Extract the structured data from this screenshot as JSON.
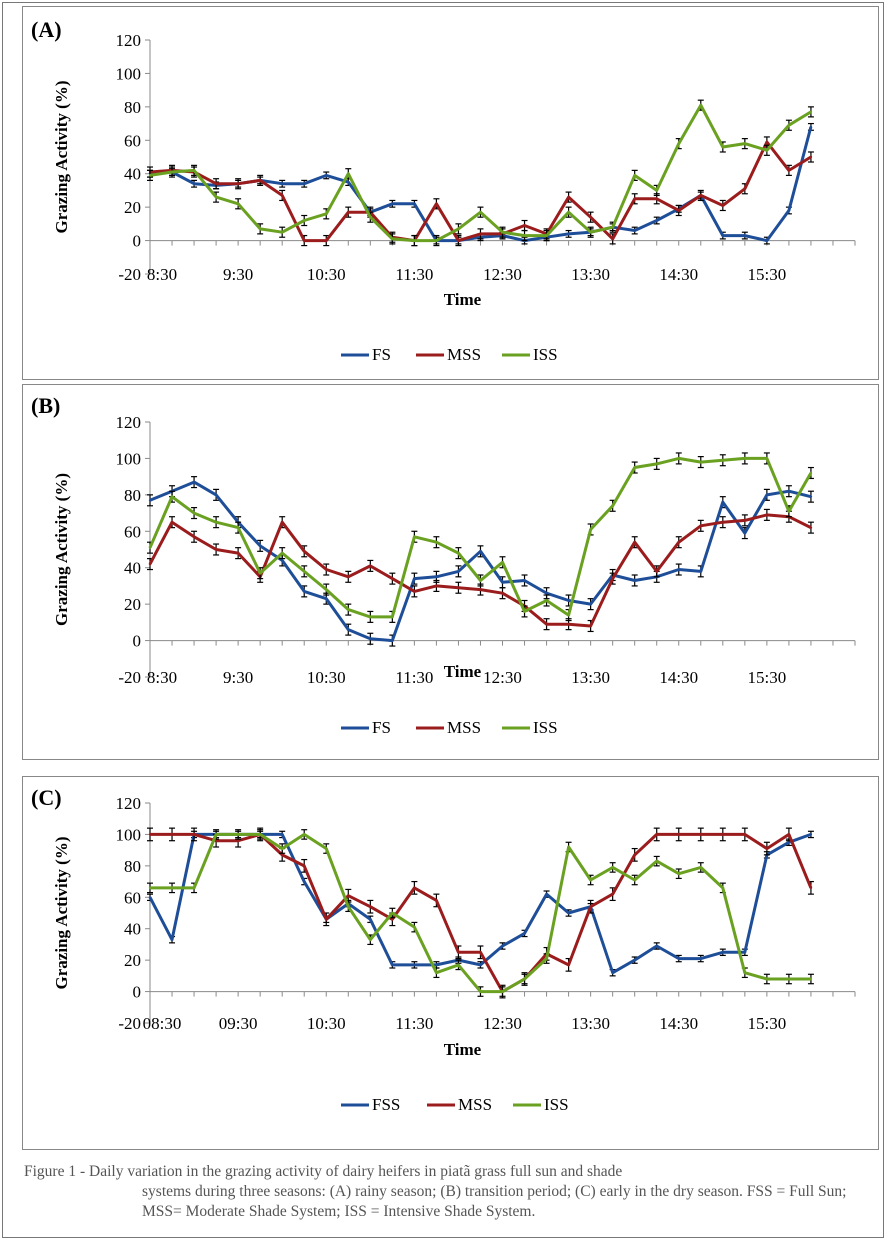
{
  "chart_data": [
    {
      "type": "line",
      "panel_label": "(A)",
      "ylabel": "Grazing Activity (%)",
      "xlabel": "Time",
      "ylim": [
        -20,
        120
      ],
      "yticks": [
        -20,
        0,
        20,
        40,
        60,
        80,
        100,
        120
      ],
      "x_tick_labels": [
        "8:30",
        "9:30",
        "10:30",
        "11:30",
        "12:30",
        "13:30",
        "14:30",
        "15:30"
      ],
      "n_points": 33,
      "error_bars": true,
      "legend_position": "bottom",
      "series": [
        {
          "name": "FS",
          "color": "#1f4e99",
          "error": 2,
          "values": [
            40,
            41,
            34,
            33,
            34,
            36,
            34,
            34,
            39,
            35,
            17,
            22,
            22,
            0,
            0,
            2,
            3,
            0,
            2,
            4,
            5,
            8,
            6,
            12,
            19,
            27,
            3,
            3,
            0,
            18,
            68,
            null,
            null
          ]
        },
        {
          "name": "MSS",
          "color": "#9b1c1c",
          "error": 3,
          "values": [
            41,
            42,
            41,
            34,
            34,
            36,
            27,
            0,
            0,
            17,
            17,
            2,
            0,
            22,
            0,
            4,
            4,
            9,
            4,
            26,
            14,
            1,
            25,
            25,
            18,
            27,
            21,
            31,
            59,
            42,
            50,
            null,
            null
          ]
        },
        {
          "name": "ISS",
          "color": "#6aa121",
          "error": 3,
          "values": [
            39,
            41,
            42,
            26,
            22,
            7,
            5,
            12,
            16,
            40,
            14,
            1,
            0,
            0,
            7,
            17,
            5,
            3,
            3,
            17,
            5,
            8,
            39,
            30,
            58,
            81,
            56,
            58,
            54,
            69,
            77,
            null,
            null
          ]
        }
      ]
    },
    {
      "type": "line",
      "panel_label": "(B)",
      "ylabel": "Grazing Activity (%)",
      "xlabel": "Time",
      "ylim": [
        -20,
        120
      ],
      "yticks": [
        -20,
        0,
        20,
        40,
        60,
        80,
        100,
        120
      ],
      "x_tick_labels": [
        "8:30",
        "9:30",
        "10:30",
        "11:30",
        "12:30",
        "13:30",
        "14:30",
        "15:30"
      ],
      "n_points": 33,
      "error_bars": true,
      "legend_position": "bottom",
      "series": [
        {
          "name": "FS",
          "color": "#1f4e99",
          "error": 3,
          "values": [
            77,
            82,
            87,
            80,
            65,
            52,
            44,
            27,
            23,
            6,
            1,
            0,
            34,
            35,
            38,
            49,
            32,
            33,
            26,
            22,
            20,
            36,
            33,
            35,
            39,
            38,
            76,
            59,
            80,
            82,
            79,
            null,
            null
          ]
        },
        {
          "name": "MSS",
          "color": "#9b1c1c",
          "error": 3,
          "values": [
            42,
            65,
            57,
            50,
            48,
            35,
            65,
            49,
            39,
            35,
            41,
            34,
            27,
            30,
            29,
            28,
            26,
            19,
            9,
            9,
            8,
            34,
            54,
            38,
            54,
            63,
            65,
            66,
            69,
            68,
            62,
            null,
            null
          ]
        },
        {
          "name": "ISS",
          "color": "#6aa121",
          "error": 3,
          "values": [
            51,
            79,
            70,
            65,
            62,
            37,
            48,
            38,
            28,
            17,
            13,
            13,
            57,
            54,
            48,
            33,
            43,
            16,
            22,
            14,
            61,
            74,
            95,
            97,
            100,
            98,
            99,
            100,
            100,
            71,
            92,
            null,
            null
          ]
        }
      ]
    },
    {
      "type": "line",
      "panel_label": "(C)",
      "ylabel": "Grazing Activity (%)",
      "xlabel": "Time",
      "ylim": [
        -20,
        120
      ],
      "yticks": [
        -20,
        0,
        20,
        40,
        60,
        80,
        100,
        120
      ],
      "x_tick_labels": [
        "08:30",
        "09:30",
        "10:30",
        "11:30",
        "12:30",
        "13:30",
        "14:30",
        "15:30"
      ],
      "n_points": 33,
      "error_bars": true,
      "legend_position": "bottom",
      "series": [
        {
          "name": "FSS",
          "color": "#1f4e99",
          "error": 2,
          "values": [
            60,
            33,
            100,
            100,
            100,
            100,
            100,
            70,
            46,
            56,
            46,
            17,
            17,
            17,
            20,
            17,
            29,
            37,
            62,
            50,
            54,
            12,
            20,
            29,
            21,
            21,
            25,
            25,
            87,
            95,
            100,
            null,
            null
          ]
        },
        {
          "name": "MSS",
          "color": "#9b1c1c",
          "error": 4,
          "values": [
            100,
            100,
            100,
            96,
            96,
            100,
            87,
            80,
            46,
            61,
            54,
            46,
            66,
            58,
            25,
            25,
            0,
            8,
            24,
            17,
            54,
            62,
            87,
            100,
            100,
            100,
            100,
            100,
            91,
            100,
            66,
            null,
            null
          ]
        },
        {
          "name": "ISS",
          "color": "#6aa121",
          "error": 3,
          "values": [
            66,
            66,
            66,
            100,
            100,
            100,
            91,
            100,
            91,
            54,
            33,
            50,
            41,
            12,
            17,
            0,
            0,
            8,
            21,
            92,
            71,
            79,
            71,
            83,
            75,
            79,
            66,
            12,
            8,
            8,
            8,
            null,
            null
          ]
        }
      ]
    }
  ],
  "caption": {
    "first_line": "Figure 1 - Daily variation in the grazing activity of dairy heifers in piatã grass full sun and shade",
    "rest": "systems during three seasons: (A) rainy season; (B) transition period; (C) early in the dry season. FSS = Full Sun; MSS= Moderate Shade System; ISS = Intensive Shade System."
  }
}
